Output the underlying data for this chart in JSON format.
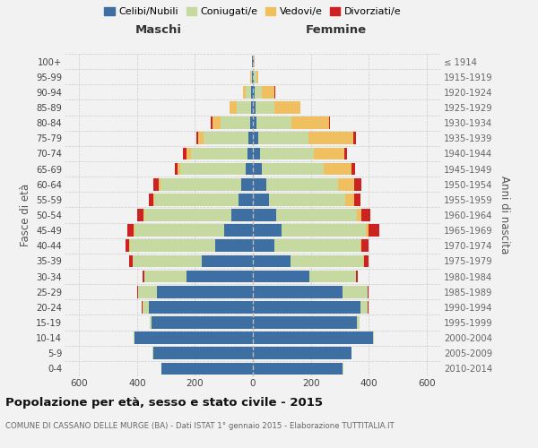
{
  "age_groups": [
    "0-4",
    "5-9",
    "10-14",
    "15-19",
    "20-24",
    "25-29",
    "30-34",
    "35-39",
    "40-44",
    "45-49",
    "50-54",
    "55-59",
    "60-64",
    "65-69",
    "70-74",
    "75-79",
    "80-84",
    "85-89",
    "90-94",
    "95-99",
    "100+"
  ],
  "birth_years": [
    "2010-2014",
    "2005-2009",
    "2000-2004",
    "1995-1999",
    "1990-1994",
    "1985-1989",
    "1980-1984",
    "1975-1979",
    "1970-1974",
    "1965-1969",
    "1960-1964",
    "1955-1959",
    "1950-1954",
    "1945-1949",
    "1940-1944",
    "1935-1939",
    "1930-1934",
    "1925-1929",
    "1920-1924",
    "1915-1919",
    "≤ 1914"
  ],
  "males": {
    "celibi": [
      315,
      345,
      410,
      350,
      360,
      330,
      230,
      175,
      130,
      100,
      75,
      50,
      40,
      25,
      20,
      15,
      10,
      5,
      5,
      2,
      2
    ],
    "coniugati": [
      2,
      2,
      2,
      5,
      20,
      65,
      145,
      240,
      295,
      310,
      300,
      290,
      280,
      225,
      195,
      155,
      100,
      50,
      20,
      5,
      2
    ],
    "vedovi": [
      0,
      0,
      0,
      0,
      1,
      1,
      1,
      1,
      1,
      2,
      3,
      5,
      5,
      10,
      15,
      20,
      30,
      25,
      8,
      2,
      0
    ],
    "divorziati": [
      0,
      0,
      0,
      0,
      2,
      2,
      5,
      10,
      15,
      20,
      20,
      15,
      20,
      8,
      10,
      5,
      5,
      0,
      0,
      0,
      0
    ]
  },
  "females": {
    "nubili": [
      310,
      340,
      415,
      360,
      370,
      310,
      195,
      130,
      75,
      100,
      80,
      55,
      45,
      30,
      25,
      18,
      12,
      8,
      5,
      3,
      2
    ],
    "coniugate": [
      2,
      2,
      2,
      8,
      25,
      85,
      160,
      250,
      295,
      290,
      280,
      265,
      250,
      215,
      185,
      175,
      120,
      65,
      25,
      8,
      2
    ],
    "vedove": [
      0,
      0,
      0,
      1,
      1,
      2,
      2,
      3,
      5,
      10,
      15,
      30,
      55,
      95,
      105,
      155,
      130,
      90,
      45,
      8,
      2
    ],
    "divorziate": [
      0,
      0,
      0,
      0,
      2,
      3,
      5,
      15,
      25,
      35,
      30,
      20,
      25,
      12,
      10,
      8,
      5,
      2,
      2,
      0,
      0
    ]
  },
  "colors": {
    "celibi": "#3d6fa3",
    "coniugati": "#c5d9a0",
    "vedovi": "#f0c060",
    "divorziati": "#cc2222"
  },
  "xlim": 650,
  "title": "Popolazione per età, sesso e stato civile - 2015",
  "subtitle": "COMUNE DI CASSANO DELLE MURGE (BA) - Dati ISTAT 1° gennaio 2015 - Elaborazione TUTTITALIA.IT",
  "ylabel_left": "Fasce di età",
  "ylabel_right": "Anni di nascita",
  "label_maschi": "Maschi",
  "label_femmine": "Femmine",
  "legend_labels": [
    "Celibi/Nubili",
    "Coniugati/e",
    "Vedovi/e",
    "Divorziati/e"
  ],
  "bg_color": "#f2f2f2",
  "grid_color": "#cccccc"
}
